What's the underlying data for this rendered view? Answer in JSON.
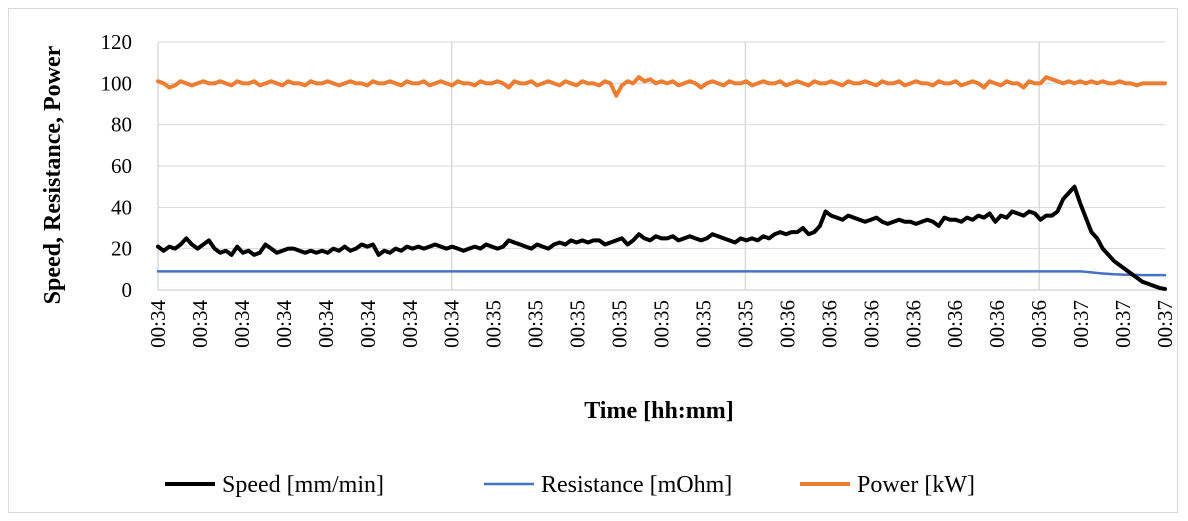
{
  "chart_data": {
    "type": "line",
    "title": "",
    "xlabel": "Time [hh:mm]",
    "ylabel": "Speed, Resistance, Power",
    "ylim": [
      0,
      120
    ],
    "yticks": [
      0,
      20,
      40,
      60,
      80,
      100,
      120
    ],
    "x_tick_labels": [
      "00:34",
      "00:34",
      "00:34",
      "00:34",
      "00:34",
      "00:34",
      "00:34",
      "00:34",
      "00:35",
      "00:35",
      "00:35",
      "00:35",
      "00:35",
      "00:35",
      "00:35",
      "00:36",
      "00:36",
      "00:36",
      "00:36",
      "00:36",
      "00:36",
      "00:36",
      "00:37",
      "00:37",
      "00:37"
    ],
    "grid": "vertical and horizontal",
    "legend_position": "bottom",
    "series": [
      {
        "name": "Speed [mm/min]",
        "color": "#000000",
        "values": [
          21,
          19,
          21,
          20,
          22,
          25,
          22,
          20,
          22,
          24,
          20,
          18,
          19,
          17,
          21,
          18,
          19,
          17,
          18,
          22,
          20,
          18,
          19,
          20,
          20,
          19,
          18,
          19,
          18,
          19,
          18,
          20,
          19,
          21,
          19,
          20,
          22,
          21,
          22,
          17,
          19,
          18,
          20,
          19,
          21,
          20,
          21,
          20,
          21,
          22,
          21,
          20,
          21,
          20,
          19,
          20,
          21,
          20,
          22,
          21,
          20,
          21,
          24,
          23,
          22,
          21,
          20,
          22,
          21,
          20,
          22,
          23,
          22,
          24,
          23,
          24,
          23,
          24,
          24,
          22,
          23,
          24,
          25,
          22,
          24,
          27,
          25,
          24,
          26,
          25,
          25,
          26,
          24,
          25,
          26,
          25,
          24,
          25,
          27,
          26,
          25,
          24,
          23,
          25,
          24,
          25,
          24,
          26,
          25,
          27,
          28,
          27,
          28,
          28,
          30,
          27,
          28,
          31,
          38,
          36,
          35,
          34,
          36,
          35,
          34,
          33,
          34,
          35,
          33,
          32,
          33,
          34,
          33,
          33,
          32,
          33,
          34,
          33,
          31,
          35,
          34,
          34,
          33,
          35,
          34,
          36,
          35,
          37,
          33,
          36,
          35,
          38,
          37,
          36,
          38,
          37,
          34,
          36,
          36,
          38,
          44,
          47,
          50,
          42,
          35,
          28,
          25,
          20,
          17,
          14,
          12,
          10,
          8,
          6,
          4,
          3,
          2,
          1,
          0.5
        ]
      },
      {
        "name": "Resistance [mOhm]",
        "color": "#4472c4",
        "values": [
          9,
          9,
          9,
          9,
          9,
          9,
          9,
          9,
          9,
          9,
          9,
          9,
          9,
          9,
          9,
          9,
          9,
          9,
          9,
          9,
          9,
          9,
          9,
          9,
          9,
          9,
          9,
          9,
          9,
          9,
          9,
          9,
          9,
          9,
          9,
          9,
          9,
          9,
          9,
          9,
          9,
          9,
          9,
          9,
          9,
          9,
          9,
          9,
          9,
          9,
          9,
          9,
          9,
          9,
          9,
          9,
          9,
          9,
          9,
          9,
          9,
          9,
          9,
          9,
          9,
          9,
          9,
          9,
          9,
          9,
          9,
          9,
          9,
          9,
          9,
          9,
          9,
          9,
          9,
          9,
          9,
          9,
          9,
          9,
          9,
          9,
          9,
          9,
          9,
          9,
          9,
          9,
          9,
          9,
          9,
          9,
          9,
          9,
          9,
          9,
          9,
          9,
          9,
          9,
          9,
          9,
          9,
          9,
          9,
          9,
          9,
          9,
          9,
          9,
          9,
          9,
          9,
          9,
          9,
          9,
          9,
          9,
          9,
          9,
          9,
          9,
          9,
          9,
          9,
          9,
          9,
          9,
          9,
          9,
          9,
          9,
          9,
          9,
          9,
          9,
          9,
          9,
          9,
          9,
          9,
          9,
          9,
          9,
          9,
          9,
          9,
          9,
          9,
          9,
          9,
          9,
          9,
          9,
          9,
          9,
          9,
          9,
          9,
          9,
          8.8,
          8.5,
          8.2,
          8,
          7.8,
          7.6,
          7.5,
          7.4,
          7.3,
          7.3,
          7.2,
          7.2,
          7.2,
          7.2,
          7.2
        ]
      },
      {
        "name": "Power [kW]",
        "color": "#ed7d31",
        "values": [
          101,
          100,
          98,
          99,
          101,
          100,
          99,
          100,
          101,
          100,
          100,
          101,
          100,
          99,
          101,
          100,
          100,
          101,
          99,
          100,
          101,
          100,
          99,
          101,
          100,
          100,
          99,
          101,
          100,
          100,
          101,
          100,
          99,
          100,
          101,
          100,
          100,
          99,
          101,
          100,
          100,
          101,
          100,
          99,
          101,
          100,
          100,
          101,
          99,
          100,
          101,
          100,
          99,
          101,
          100,
          100,
          99,
          101,
          100,
          100,
          101,
          100,
          98,
          101,
          100,
          100,
          101,
          99,
          100,
          101,
          100,
          99,
          101,
          100,
          99,
          101,
          100,
          100,
          99,
          101,
          100,
          94,
          99,
          101,
          100,
          103,
          101,
          102,
          100,
          101,
          100,
          101,
          99,
          100,
          101,
          100,
          98,
          100,
          101,
          100,
          99,
          101,
          100,
          100,
          101,
          99,
          100,
          101,
          100,
          100,
          101,
          99,
          100,
          101,
          100,
          99,
          101,
          100,
          100,
          101,
          100,
          99,
          101,
          100,
          100,
          101,
          100,
          99,
          101,
          100,
          100,
          101,
          99,
          100,
          101,
          100,
          100,
          99,
          101,
          100,
          100,
          101,
          99,
          100,
          101,
          100,
          98,
          101,
          100,
          99,
          101,
          100,
          100,
          98,
          101,
          100,
          100,
          103,
          102,
          101,
          100,
          101,
          100,
          101,
          100,
          101,
          100,
          101,
          100,
          100,
          101,
          100,
          100,
          99,
          100,
          100,
          100,
          100,
          100
        ]
      }
    ]
  }
}
